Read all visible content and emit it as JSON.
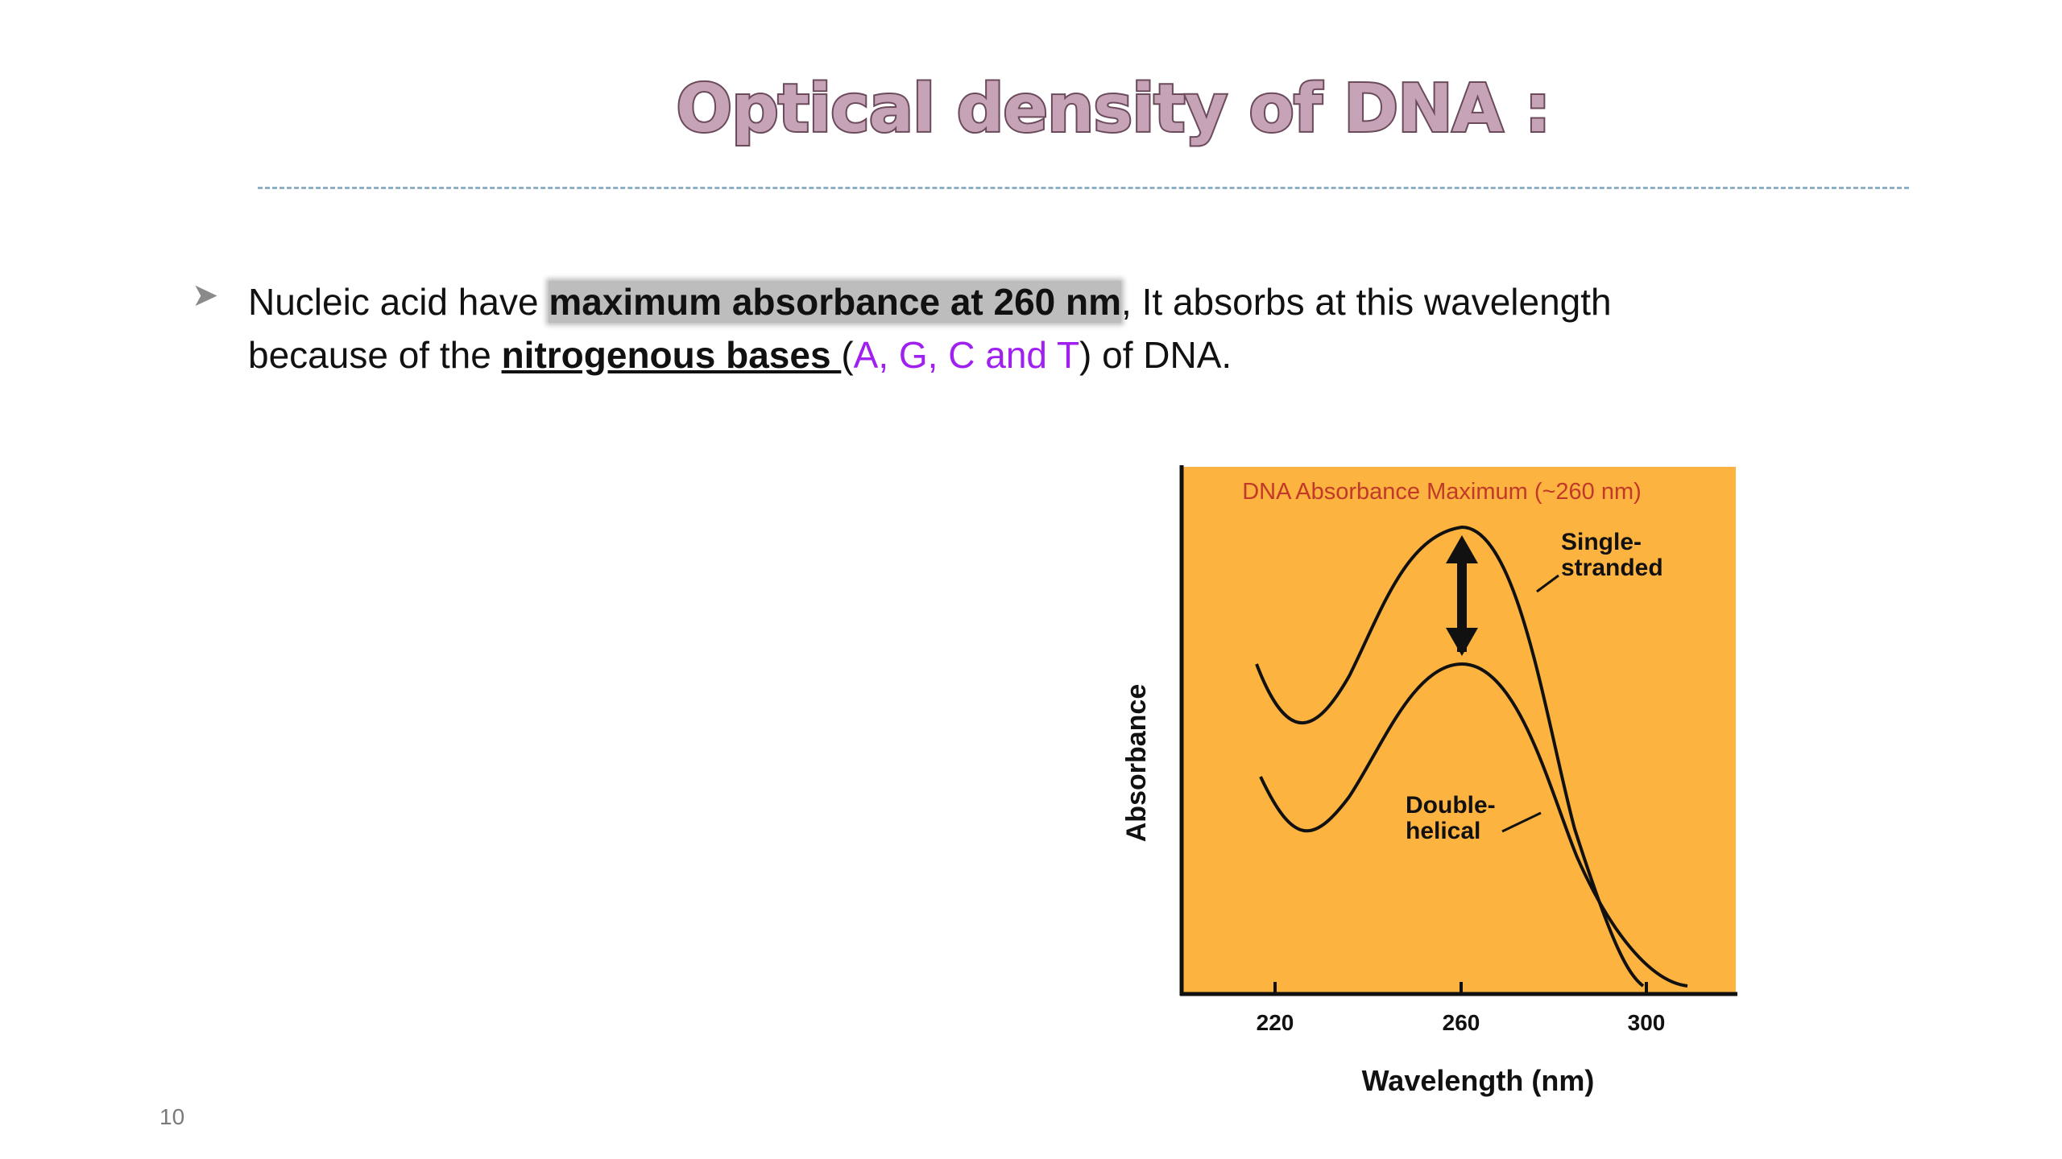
{
  "slide": {
    "title": "Optical density of DNA :",
    "page_number": "10",
    "bullet": {
      "arrow_icon": "arrow-right-icon",
      "text_before": "Nucleic acid have ",
      "highlight": "maximum absorbance at 260 nm",
      "text_middle": ", It absorbs at this wavelength",
      "text_line2_start": "because of the ",
      "underlined": "nitrogenous bases ",
      "paren_open": "(",
      "bases": "A, G, C and T",
      "text_end": ") of DNA."
    }
  },
  "chart_data": {
    "type": "line",
    "title": "DNA Absorbance Maximum (~260 nm)",
    "xlabel": "Wavelength (nm)",
    "ylabel": "Absorbance",
    "x_ticks": [
      "220",
      "260",
      "300"
    ],
    "colors": {
      "background": "#fdb33f",
      "line": "#111111",
      "title": "#c0392b"
    },
    "series": [
      {
        "name": "Single-\nstranded",
        "label_lines": [
          "Single-",
          "stranded"
        ]
      },
      {
        "name": "Double-\nhelical",
        "label_lines": [
          "Double-",
          "helical"
        ]
      }
    ],
    "annotation": "double-headed-arrow-icon"
  }
}
